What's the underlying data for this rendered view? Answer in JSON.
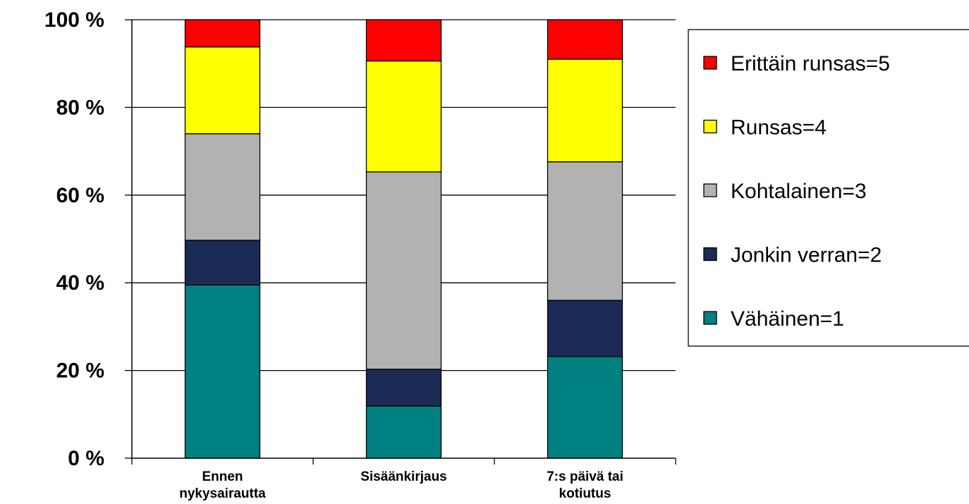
{
  "chart_data": {
    "type": "bar",
    "stacked": true,
    "percent_stacked": true,
    "categories": [
      [
        "Ennen",
        "nykysairautta"
      ],
      [
        "Sisäänkirjaus"
      ],
      [
        "7:s päivä tai",
        "kotiutus"
      ]
    ],
    "series": [
      {
        "name": "Vähäinen=1",
        "color": "#008080",
        "values": [
          39.5,
          11.9,
          23.2
        ]
      },
      {
        "name": "Jonkin verran=2",
        "color": "#1B2A55",
        "values": [
          10.2,
          8.4,
          12.8
        ]
      },
      {
        "name": "Kohtalainen=3",
        "color": "#B2B2B2",
        "values": [
          24.3,
          45.0,
          31.6
        ]
      },
      {
        "name": "Runsas=4",
        "color": "#FFFF00",
        "values": [
          19.8,
          25.3,
          23.4
        ]
      },
      {
        "name": "Erittäin runsas=5",
        "color": "#FF0000",
        "values": [
          6.2,
          9.4,
          9.0
        ]
      }
    ],
    "yticks": [
      "0 %",
      "20 %",
      "40 %",
      "60 %",
      "80 %",
      "100 %"
    ],
    "ylim": [
      0,
      100
    ],
    "grid": true,
    "legend": "right, in reverse series order",
    "title": "",
    "xlabel": "",
    "ylabel": ""
  }
}
